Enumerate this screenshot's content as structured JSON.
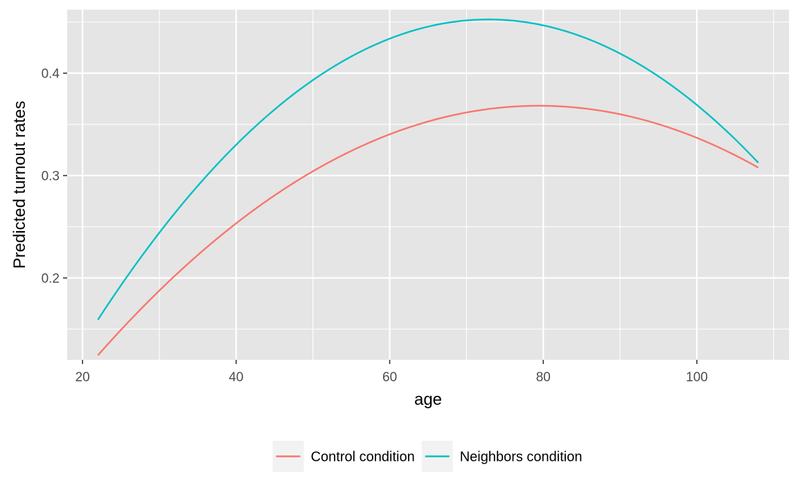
{
  "chart_data": {
    "type": "line",
    "title": "",
    "xlabel": "age",
    "ylabel": "Predicted turnout rates",
    "xlim": [
      18,
      112
    ],
    "ylim": [
      0.12,
      0.462
    ],
    "x_ticks": [
      20,
      40,
      60,
      80,
      100
    ],
    "x_tick_labels": [
      "20",
      "40",
      "60",
      "80",
      "100"
    ],
    "y_ticks": [
      0.2,
      0.3,
      0.4
    ],
    "y_tick_labels": [
      "0.2",
      "0.3",
      "0.4"
    ],
    "grid": true,
    "legend_position": "bottom",
    "background": "#e5e5e5",
    "series": [
      {
        "name": "Control condition",
        "color": "#f8766d",
        "x": [
          22,
          30,
          40,
          50,
          60,
          70,
          79.5,
          90,
          100,
          108
        ],
        "y": [
          0.126,
          0.186,
          0.253,
          0.303,
          0.341,
          0.363,
          0.368,
          0.36,
          0.336,
          0.308
        ]
      },
      {
        "name": "Neighbors condition",
        "color": "#00bfc4",
        "x": [
          22,
          30,
          40,
          50,
          60,
          72.8,
          80,
          90,
          100,
          108
        ],
        "y": [
          0.16,
          0.243,
          0.33,
          0.394,
          0.433,
          0.452,
          0.447,
          0.42,
          0.369,
          0.312
        ]
      }
    ]
  }
}
